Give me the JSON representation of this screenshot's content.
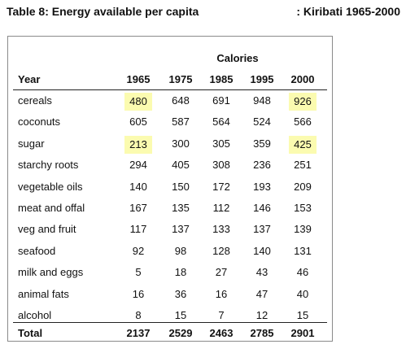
{
  "title": "Table 8: Energy available per capita",
  "subtitle": ": Kiribati 1965-2000",
  "group_header": "Calories",
  "columns": [
    "Year",
    "1965",
    "1975",
    "1985",
    "1995",
    "2000"
  ],
  "rows": [
    {
      "label": "cereals",
      "values": [
        "480",
        "648",
        "691",
        "948",
        "926"
      ]
    },
    {
      "label": "coconuts",
      "values": [
        "605",
        "587",
        "564",
        "524",
        "566"
      ]
    },
    {
      "label": "sugar",
      "values": [
        "213",
        "300",
        "305",
        "359",
        "425"
      ]
    },
    {
      "label": "starchy roots",
      "values": [
        "294",
        "405",
        "308",
        "236",
        "251"
      ]
    },
    {
      "label": "vegetable oils",
      "values": [
        "140",
        "150",
        "172",
        "193",
        "209"
      ]
    },
    {
      "label": "meat and offal",
      "values": [
        "167",
        "135",
        "112",
        "146",
        "153"
      ]
    },
    {
      "label": "veg and fruit",
      "values": [
        "117",
        "137",
        "133",
        "137",
        "139"
      ]
    },
    {
      "label": "seafood",
      "values": [
        "92",
        "98",
        "128",
        "140",
        "131"
      ]
    },
    {
      "label": "milk and eggs",
      "values": [
        "5",
        "18",
        "27",
        "43",
        "46"
      ]
    },
    {
      "label": "animal fats",
      "values": [
        "16",
        "36",
        "16",
        "47",
        "40"
      ]
    },
    {
      "label": "alcohol",
      "values": [
        "8",
        "15",
        "7",
        "12",
        "15"
      ]
    }
  ],
  "total": {
    "label": "Total",
    "values": [
      "2137",
      "2529",
      "2463",
      "2785",
      "2901"
    ]
  },
  "highlight_color": "#fbfbb0"
}
